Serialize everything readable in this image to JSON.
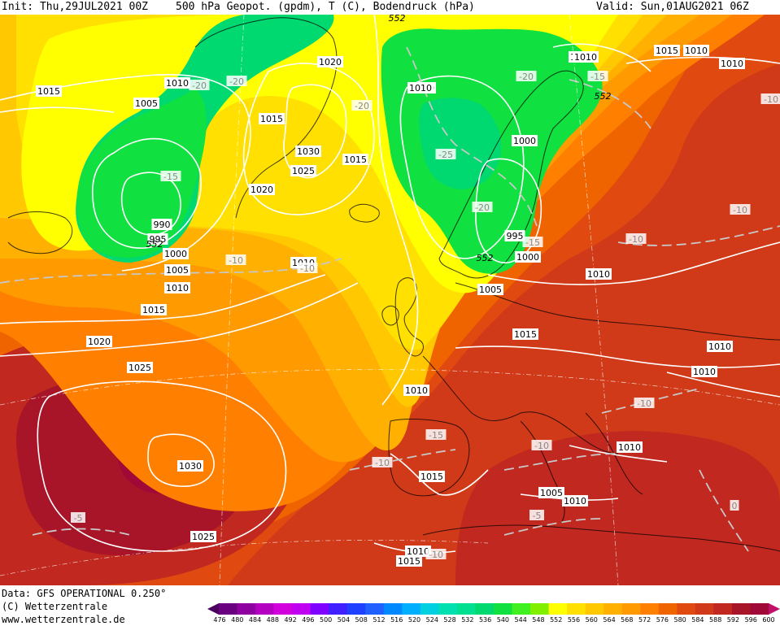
{
  "header": {
    "init": "Init: Thu,29JUL2021 00Z",
    "title": "500 hPa Geopot. (gpdm), T (C), Bodendruck (hPa)",
    "valid": "Valid: Sun,01AUG2021 06Z"
  },
  "footer": {
    "data_line": "Data: GFS OPERATIONAL 0.250°",
    "copyright": "(C) Wetterzentrale",
    "url": "www.wetterzentrale.de"
  },
  "colorbar": {
    "labels": [
      "476",
      "480",
      "484",
      "488",
      "492",
      "496",
      "500",
      "504",
      "508",
      "512",
      "516",
      "520",
      "524",
      "528",
      "532",
      "536",
      "540",
      "544",
      "548",
      "552",
      "556",
      "560",
      "564",
      "568",
      "572",
      "576",
      "580",
      "584",
      "588",
      "592",
      "596",
      "600"
    ],
    "colors": [
      "#4b0060",
      "#6a0080",
      "#8f00a0",
      "#b400c0",
      "#d200dc",
      "#c000f0",
      "#8000ff",
      "#4020ff",
      "#2040ff",
      "#2060ff",
      "#0088ff",
      "#00b0ff",
      "#00d0e0",
      "#00e0b0",
      "#00e090",
      "#00d870",
      "#10e040",
      "#40f020",
      "#80f000",
      "#ffff00",
      "#ffe000",
      "#ffc800",
      "#ffb000",
      "#ff9a00",
      "#ff8000",
      "#f06400",
      "#e04a10",
      "#d03a18",
      "#c02820",
      "#a81428",
      "#a00838",
      "#c0106a"
    ]
  },
  "pressure_labels": [
    "1015",
    "1010",
    "1005",
    "1020",
    "1015",
    "1030",
    "1025",
    "1020",
    "1015",
    "1010",
    "1000",
    "1010",
    "1000",
    "990",
    "995",
    "1000",
    "1005",
    "1010",
    "1015",
    "1020",
    "1025",
    "1030",
    "1025",
    "995",
    "1000",
    "1005",
    "1010",
    "1015",
    "1010",
    "1010",
    "1010",
    "1005",
    "1010",
    "1010",
    "1015",
    "1010",
    "1010",
    "1010",
    "1015",
    "1015",
    "1010",
    "1010"
  ],
  "height_labels": [
    "552",
    "552",
    "552",
    "552"
  ],
  "temp_labels": [
    "-20",
    "-20",
    "-20",
    "-15",
    "-20",
    "-15",
    "-25",
    "-20",
    "-15",
    "-10",
    "-10",
    "-10",
    "-10",
    "-15",
    "-10",
    "-10",
    "-5",
    "-5",
    "-10",
    "0",
    "-10",
    "-10"
  ]
}
